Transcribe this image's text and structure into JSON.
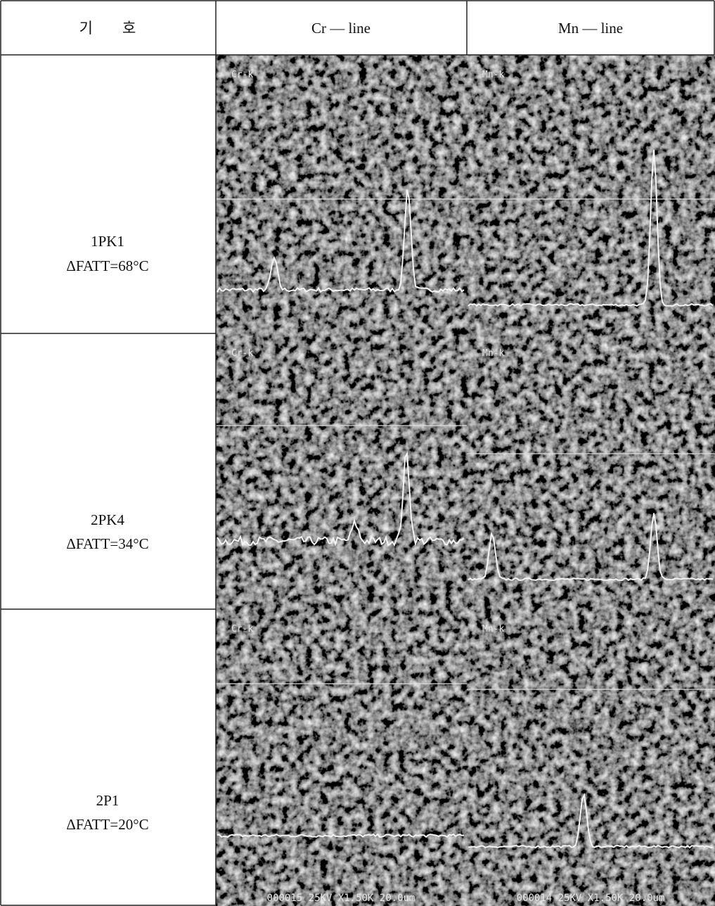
{
  "table": {
    "header": [
      "기　　호",
      "Cr — line",
      "Mn — line"
    ],
    "rows": [
      [
        "1PK1",
        "ΔFATT=68°C",
        "Cr-k",
        "Mn-k"
      ],
      [
        "2PK4",
        "ΔFATT=34°C",
        "Cr-k",
        "Mn-k"
      ],
      [
        "2P1",
        "ΔFATT=20°C",
        "Cr-k",
        "Mn-k"
      ]
    ],
    "footer": [
      "000015 25KV X1.50K 20.0um",
      "000014 25KV X1.50K 20.0um"
    ]
  }
}
